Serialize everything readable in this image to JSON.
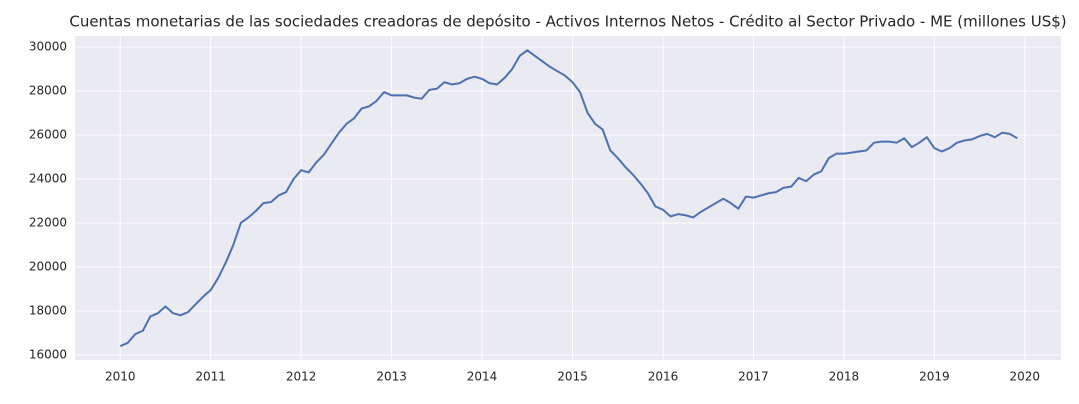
{
  "chart_data": {
    "type": "line",
    "title": "Cuentas monetarias de las sociedades creadoras de depósito - Activos Internos Netos - Crédito al Sector Privado - ME (millones US$)",
    "x": [
      2010,
      2010.083,
      2010.167,
      2010.25,
      2010.333,
      2010.417,
      2010.5,
      2010.583,
      2010.667,
      2010.75,
      2010.833,
      2010.917,
      2011,
      2011.083,
      2011.167,
      2011.25,
      2011.333,
      2011.417,
      2011.5,
      2011.583,
      2011.667,
      2011.75,
      2011.833,
      2011.917,
      2012,
      2012.083,
      2012.167,
      2012.25,
      2012.333,
      2012.417,
      2012.5,
      2012.583,
      2012.667,
      2012.75,
      2012.833,
      2012.917,
      2013,
      2013.083,
      2013.167,
      2013.25,
      2013.333,
      2013.417,
      2013.5,
      2013.583,
      2013.667,
      2013.75,
      2013.833,
      2013.917,
      2014,
      2014.083,
      2014.167,
      2014.25,
      2014.333,
      2014.417,
      2014.5,
      2014.583,
      2014.667,
      2014.75,
      2014.833,
      2014.917,
      2015,
      2015.083,
      2015.167,
      2015.25,
      2015.333,
      2015.417,
      2015.5,
      2015.583,
      2015.667,
      2015.75,
      2015.833,
      2015.917,
      2016,
      2016.083,
      2016.167,
      2016.25,
      2016.333,
      2016.417,
      2016.5,
      2016.583,
      2016.667,
      2016.75,
      2016.833,
      2016.917,
      2017,
      2017.083,
      2017.167,
      2017.25,
      2017.333,
      2017.417,
      2017.5,
      2017.583,
      2017.667,
      2017.75,
      2017.833,
      2017.917,
      2018,
      2018.083,
      2018.167,
      2018.25,
      2018.333,
      2018.417,
      2018.5,
      2018.583,
      2018.667,
      2018.75,
      2018.833,
      2018.917,
      2019,
      2019.083,
      2019.167,
      2019.25,
      2019.333,
      2019.417,
      2019.5,
      2019.583,
      2019.667,
      2019.75,
      2019.833,
      2019.917
    ],
    "series": [
      {
        "color": "#4c72b0",
        "values": [
          16400,
          16550,
          16950,
          17100,
          17750,
          17900,
          18200,
          17900,
          17800,
          17950,
          18300,
          18650,
          18950,
          19500,
          20200,
          21000,
          22000,
          22250,
          22550,
          22900,
          22950,
          23250,
          23400,
          24000,
          24400,
          24300,
          24750,
          25100,
          25600,
          26100,
          26500,
          26750,
          27200,
          27300,
          27550,
          27950,
          27800,
          27800,
          27800,
          27700,
          27650,
          28050,
          28100,
          28400,
          28300,
          28350,
          28550,
          28650,
          28550,
          28350,
          28300,
          28600,
          29000,
          29600,
          29850,
          29600,
          29350,
          29100,
          28900,
          28700,
          28400,
          27950,
          27000,
          26500,
          26250,
          25300,
          24950,
          24550,
          24200,
          23800,
          23350,
          22750,
          22600,
          22300,
          22400,
          22350,
          22250,
          22500,
          22700,
          22900,
          23100,
          22900,
          22650,
          23200,
          23150,
          23250,
          23350,
          23400,
          23600,
          23650,
          24050,
          23900,
          24200,
          24350,
          24950,
          25150,
          25150,
          25200,
          25250,
          25300,
          25650,
          25700,
          25700,
          25650,
          25850,
          25450,
          25650,
          25900,
          25400,
          25250,
          25400,
          25650,
          25750,
          25800,
          25950,
          26050,
          25900,
          26100,
          26050,
          25850
        ]
      }
    ],
    "xlim": [
      2009.5,
      2020.4
    ],
    "xticks": [
      2010,
      2011,
      2012,
      2013,
      2014,
      2015,
      2016,
      2017,
      2018,
      2019,
      2020
    ],
    "ylim": [
      15770,
      30500
    ],
    "yticks": [
      16000,
      18000,
      20000,
      22000,
      24000,
      26000,
      28000,
      30000
    ],
    "grid": true
  }
}
